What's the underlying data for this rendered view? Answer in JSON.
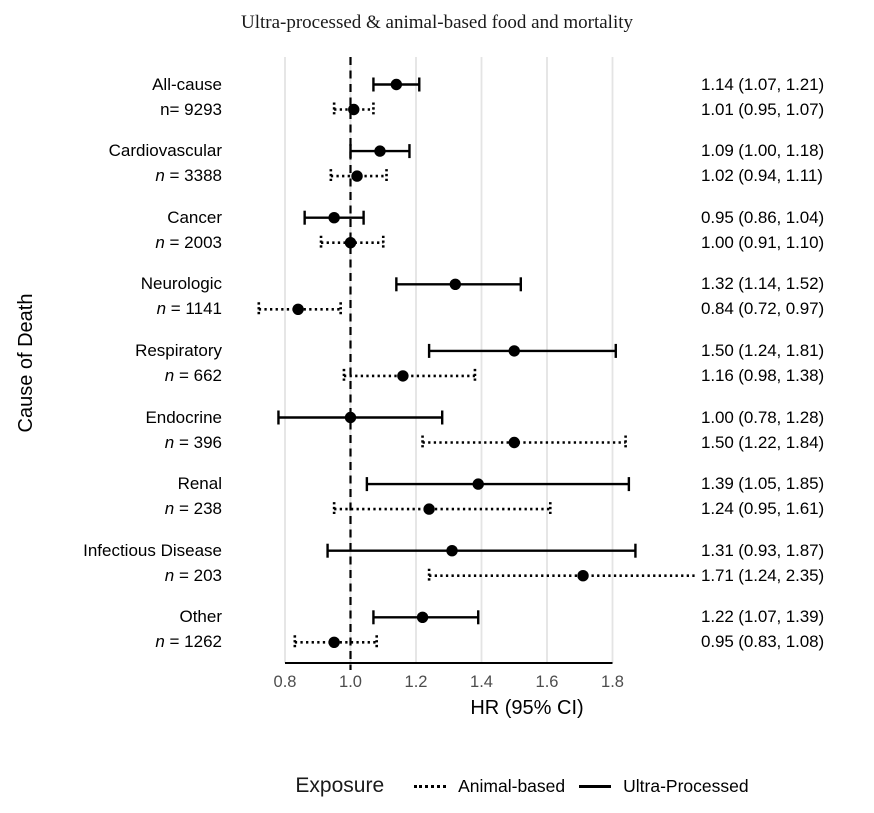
{
  "chart_data": {
    "type": "forest",
    "title": "Ultra-processed & animal-based food and mortality",
    "xlabel": "HR (95% CI)",
    "ylabel": "Cause of Death",
    "xlim": [
      0.8,
      1.8
    ],
    "x_ticks": [
      0.8,
      1.0,
      1.2,
      1.4,
      1.6,
      1.8
    ],
    "reference_line": 1.0,
    "grid": "vertical-only",
    "colors": {
      "line": "#000000",
      "gridline": "#e4e4e4",
      "tick_text": "#4d4d4d"
    },
    "groups": [
      {
        "name": "All-cause",
        "n_label": "n= 9293",
        "n_italic": false,
        "ultra": {
          "hr": 1.14,
          "lo": 1.07,
          "hi": 1.21,
          "label": "1.14 (1.07, 1.21)"
        },
        "animal": {
          "hr": 1.01,
          "lo": 0.95,
          "hi": 1.07,
          "label": "1.01 (0.95, 1.07)"
        }
      },
      {
        "name": "Cardiovascular",
        "n_label": "n = 3388",
        "n_italic": true,
        "ultra": {
          "hr": 1.09,
          "lo": 1.0,
          "hi": 1.18,
          "label": "1.09 (1.00, 1.18)"
        },
        "animal": {
          "hr": 1.02,
          "lo": 0.94,
          "hi": 1.11,
          "label": "1.02 (0.94, 1.11)"
        }
      },
      {
        "name": "Cancer",
        "n_label": "n = 2003",
        "n_italic": true,
        "ultra": {
          "hr": 0.95,
          "lo": 0.86,
          "hi": 1.04,
          "label": "0.95 (0.86, 1.04)"
        },
        "animal": {
          "hr": 1.0,
          "lo": 0.91,
          "hi": 1.1,
          "label": "1.00 (0.91, 1.10)"
        }
      },
      {
        "name": "Neurologic",
        "n_label": "n = 1141",
        "n_italic": true,
        "ultra": {
          "hr": 1.32,
          "lo": 1.14,
          "hi": 1.52,
          "label": "1.32 (1.14, 1.52)"
        },
        "animal": {
          "hr": 0.84,
          "lo": 0.72,
          "hi": 0.97,
          "label": "0.84 (0.72, 0.97)"
        }
      },
      {
        "name": "Respiratory",
        "n_label": "n = 662",
        "n_italic": true,
        "ultra": {
          "hr": 1.5,
          "lo": 1.24,
          "hi": 1.81,
          "label": "1.50 (1.24, 1.81)"
        },
        "animal": {
          "hr": 1.16,
          "lo": 0.98,
          "hi": 1.38,
          "label": "1.16 (0.98, 1.38)"
        }
      },
      {
        "name": "Endocrine",
        "n_label": "n = 396",
        "n_italic": true,
        "ultra": {
          "hr": 1.0,
          "lo": 0.78,
          "hi": 1.28,
          "label": "1.00 (0.78, 1.28)"
        },
        "animal": {
          "hr": 1.5,
          "lo": 1.22,
          "hi": 1.84,
          "label": "1.50 (1.22, 1.84)"
        }
      },
      {
        "name": "Renal",
        "n_label": "n = 238",
        "n_italic": true,
        "ultra": {
          "hr": 1.39,
          "lo": 1.05,
          "hi": 1.85,
          "label": "1.39 (1.05, 1.85)"
        },
        "animal": {
          "hr": 1.24,
          "lo": 0.95,
          "hi": 1.61,
          "label": "1.24 (0.95, 1.61)"
        }
      },
      {
        "name": "Infectious Disease",
        "n_label": "n = 203",
        "n_italic": true,
        "ultra": {
          "hr": 1.31,
          "lo": 0.93,
          "hi": 1.87,
          "label": "1.31 (0.93, 1.87)"
        },
        "animal": {
          "hr": 1.71,
          "lo": 1.24,
          "hi": 2.35,
          "label": "1.71 (1.24, 2.35)",
          "clipped_high": true
        }
      },
      {
        "name": "Other",
        "n_label": "n = 1262",
        "n_italic": true,
        "ultra": {
          "hr": 1.22,
          "lo": 1.07,
          "hi": 1.39,
          "label": "1.22 (1.07, 1.39)"
        },
        "animal": {
          "hr": 0.95,
          "lo": 0.83,
          "hi": 1.08,
          "label": "0.95 (0.83, 1.08)"
        }
      }
    ],
    "legend": {
      "title": "Exposure",
      "items": [
        {
          "label": "Animal-based",
          "style": "dotted"
        },
        {
          "label": "Ultra-Processed",
          "style": "solid"
        }
      ]
    }
  }
}
